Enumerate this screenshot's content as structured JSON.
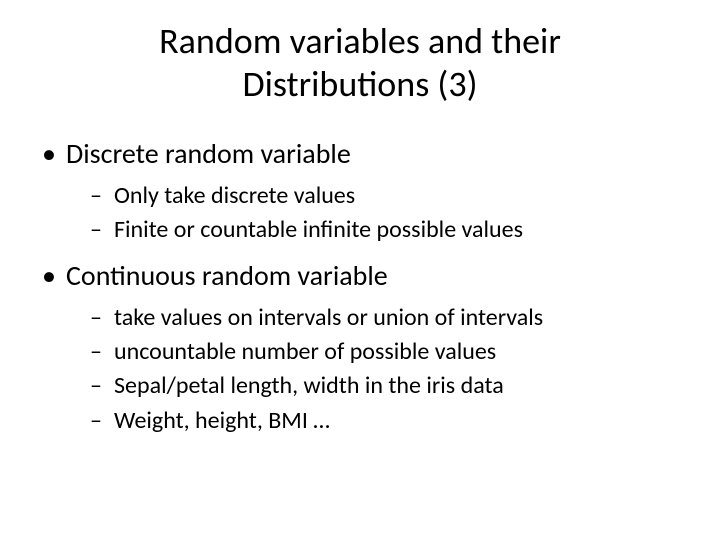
{
  "title_line1": "Random variables and their",
  "title_line2": "Distributions (3)",
  "sections": [
    {
      "heading": "Discrete random variable",
      "items": [
        "Only take discrete values",
        "Finite or countable infinite possible values"
      ]
    },
    {
      "heading": "Continuous random variable",
      "items": [
        "take values on intervals or union of intervals",
        "uncountable number of possible values",
        "Sepal/petal length, width in the iris data",
        "Weight, height, BMI …"
      ]
    }
  ],
  "style": {
    "background_color": "#ffffff",
    "text_color": "#000000",
    "title_fontsize": 36,
    "l1_fontsize": 28,
    "l2_fontsize": 24,
    "font_family": "Calibri, Arial, sans-serif"
  }
}
